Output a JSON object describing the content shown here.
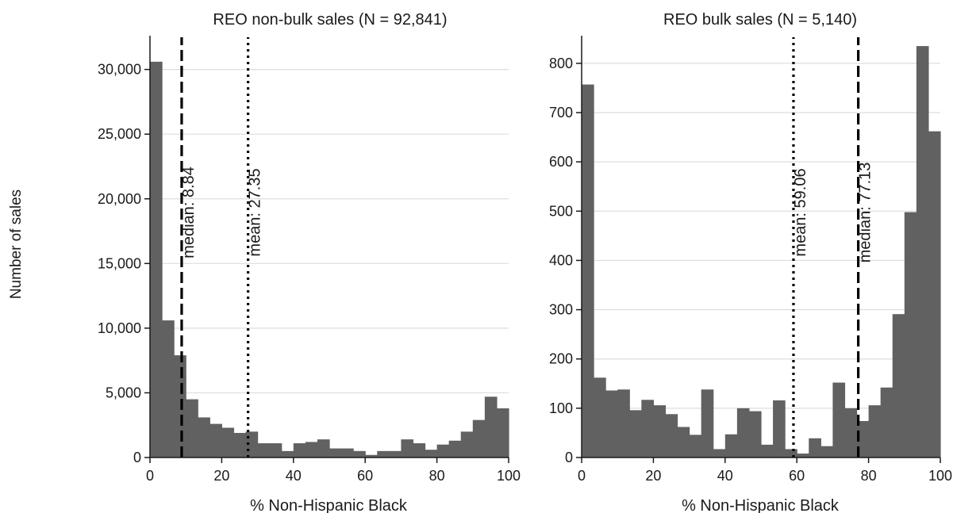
{
  "figure": {
    "ylabel": "Number of sales",
    "colors": {
      "bar": "#616161",
      "grid": "#dddddd",
      "axis": "#1a1a1a"
    }
  },
  "chart_data": [
    {
      "type": "bar",
      "title": "REO non-bulk sales (N = 92,841)",
      "xlabel": "% Non-Hispanic Black",
      "ylabel": "Number of sales",
      "bin_width": 3.33,
      "xlim": [
        0,
        100
      ],
      "ylim": [
        0,
        32000
      ],
      "xticks": [
        0,
        20,
        40,
        60,
        80,
        100
      ],
      "yticks": [
        0,
        5000,
        10000,
        15000,
        20000,
        25000,
        30000
      ],
      "ytick_labels": [
        "0",
        "5,000",
        "10,000",
        "15,000",
        "20,000",
        "25,000",
        "30,000"
      ],
      "grid": "horizontal",
      "values": [
        30600,
        10600,
        7900,
        4500,
        3100,
        2600,
        2300,
        1900,
        2000,
        1100,
        1100,
        500,
        1100,
        1200,
        1400,
        700,
        700,
        500,
        200,
        500,
        500,
        1400,
        1100,
        600,
        1000,
        1300,
        2000,
        2900,
        4700,
        3800
      ],
      "reference_lines": [
        {
          "name": "median",
          "value": 8.84,
          "style": "dashed",
          "label": "median: 8.84"
        },
        {
          "name": "mean",
          "value": 27.35,
          "style": "dotted",
          "label": "mean: 27.35"
        }
      ]
    },
    {
      "type": "bar",
      "title": "REO bulk sales (N = 5,140)",
      "xlabel": "% Non-Hispanic Black",
      "ylabel": "Number of sales",
      "bin_width": 3.33,
      "xlim": [
        0,
        100
      ],
      "ylim": [
        0,
        840
      ],
      "xticks": [
        0,
        20,
        40,
        60,
        80,
        100
      ],
      "yticks": [
        0,
        100,
        200,
        300,
        400,
        500,
        600,
        700,
        800
      ],
      "ytick_labels": [
        "0",
        "100",
        "200",
        "300",
        "400",
        "500",
        "600",
        "700",
        "800"
      ],
      "grid": "horizontal",
      "values": [
        757,
        162,
        136,
        138,
        96,
        117,
        106,
        88,
        62,
        46,
        138,
        17,
        47,
        100,
        94,
        26,
        116,
        17,
        8,
        39,
        23,
        152,
        100,
        74,
        106,
        142,
        291,
        498,
        835,
        662
      ],
      "reference_lines": [
        {
          "name": "mean",
          "value": 59.06,
          "style": "dotted",
          "label": "mean: 59.06"
        },
        {
          "name": "median",
          "value": 77.13,
          "style": "dashed",
          "label": "median: 77.13"
        }
      ]
    }
  ]
}
